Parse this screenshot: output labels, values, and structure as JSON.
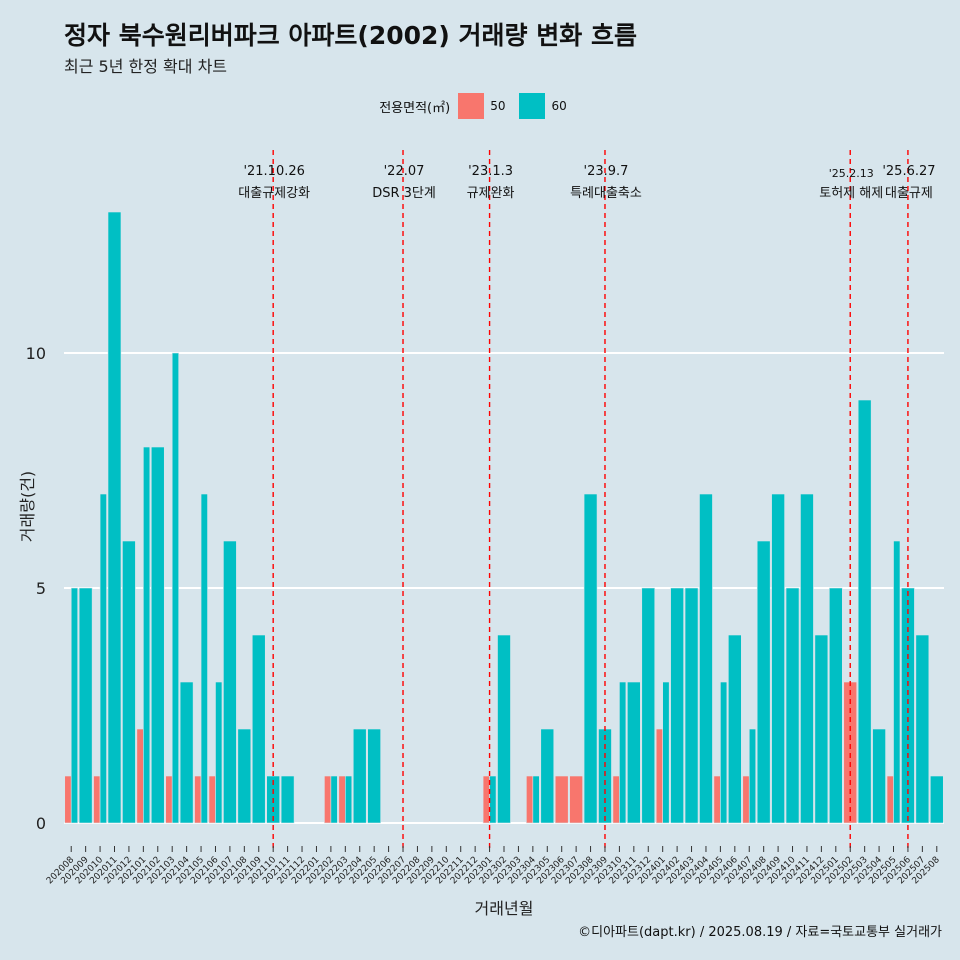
{
  "title": "정자 북수원리버파크 아파트(2002) 거래량 변화 흐름",
  "subtitle": "최근 5년 한정 확대 차트",
  "caption": "©디아파트(dapt.kr) / 2025.08.19 / 자료=국토교통부 실거래가",
  "legend": {
    "title": "전용면적(㎡)",
    "items": [
      {
        "label": "50",
        "color": "#F8766D"
      },
      {
        "label": "60",
        "color": "#00BFC4"
      }
    ]
  },
  "chart_data": {
    "type": "bar",
    "xlabel": "거래년월",
    "ylabel": "거래량(건)",
    "ylim": [
      0,
      14.2
    ],
    "yticks": [
      0,
      5,
      10
    ],
    "grid": true,
    "legend_position": "top",
    "categories": [
      "202008",
      "202009",
      "202010",
      "202011",
      "202012",
      "202101",
      "202102",
      "202103",
      "202104",
      "202105",
      "202106",
      "202107",
      "202108",
      "202109",
      "202110",
      "202111",
      "202112",
      "202201",
      "202202",
      "202203",
      "202204",
      "202205",
      "202206",
      "202207",
      "202208",
      "202209",
      "202210",
      "202211",
      "202212",
      "202301",
      "202302",
      "202303",
      "202304",
      "202305",
      "202306",
      "202307",
      "202308",
      "202309",
      "202310",
      "202311",
      "202312",
      "202401",
      "202402",
      "202403",
      "202404",
      "202405",
      "202406",
      "202407",
      "202408",
      "202409",
      "202410",
      "202411",
      "202412",
      "202501",
      "202502",
      "202503",
      "202504",
      "202505",
      "202506",
      "202507",
      "202508"
    ],
    "series": [
      {
        "name": "50",
        "color": "#F8766D",
        "values": [
          1,
          0,
          1,
          0,
          0,
          2,
          0,
          1,
          0,
          1,
          1,
          0,
          0,
          0,
          0,
          0,
          0,
          0,
          1,
          1,
          0,
          0,
          0,
          0,
          0,
          0,
          0,
          0,
          0,
          1,
          0,
          0,
          1,
          0,
          1,
          1,
          0,
          0,
          1,
          0,
          0,
          2,
          0,
          0,
          0,
          1,
          0,
          1,
          0,
          0,
          0,
          0,
          0,
          0,
          3,
          0,
          0,
          1,
          0,
          0,
          0
        ]
      },
      {
        "name": "60",
        "color": "#00BFC4",
        "values": [
          5,
          5,
          7,
          13,
          6,
          8,
          8,
          10,
          3,
          7,
          3,
          6,
          2,
          4,
          1,
          1,
          0,
          0,
          1,
          1,
          2,
          2,
          0,
          0,
          0,
          0,
          0,
          0,
          0,
          1,
          4,
          0,
          1,
          2,
          0,
          0,
          7,
          2,
          3,
          3,
          5,
          3,
          5,
          5,
          7,
          3,
          4,
          2,
          6,
          7,
          5,
          7,
          4,
          5,
          0,
          9,
          2,
          6,
          5,
          4,
          1
        ]
      }
    ],
    "annotations": [
      {
        "x": "202110",
        "date": "'21.10.26",
        "label": "대출규제강화"
      },
      {
        "x": "202207",
        "date": "'22.07",
        "label": "DSR 3단계"
      },
      {
        "x": "202301",
        "date": "'23.1.3",
        "label": "규제완화"
      },
      {
        "x": "202309",
        "date": "'23.9.7",
        "label": "특례대출축소"
      },
      {
        "x": "202502",
        "date": "'25.2.13",
        "label": "토허제 해제"
      },
      {
        "x": "202506",
        "date": "'25.6.27",
        "label": "대출규제"
      }
    ]
  }
}
